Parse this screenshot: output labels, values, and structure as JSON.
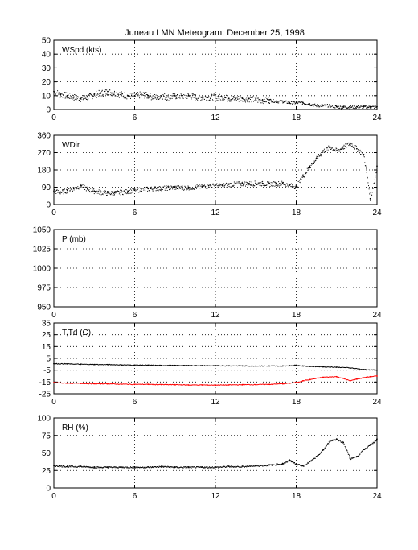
{
  "figure": {
    "title": "Juneau LMN Meteogram:   December 25, 1998"
  },
  "chart_data": [
    {
      "type": "scatter",
      "label": "WSpd (kts)",
      "ylim": [
        0,
        50
      ],
      "yticks": [
        0,
        10,
        20,
        30,
        40,
        50
      ],
      "xlim": [
        0,
        24
      ],
      "xticks": [
        0,
        6,
        12,
        18,
        24
      ],
      "grid": true,
      "colors": [
        "#000000"
      ],
      "series": [
        {
          "values": [
            [
              0,
              13
            ],
            [
              0.5,
              11
            ],
            [
              1,
              10
            ],
            [
              1.5,
              9
            ],
            [
              2,
              8
            ],
            [
              2.5,
              9
            ],
            [
              3,
              11
            ],
            [
              3.5,
              12
            ],
            [
              4,
              13
            ],
            [
              4.5,
              12
            ],
            [
              5,
              11
            ],
            [
              5.5,
              10
            ],
            [
              6,
              10
            ],
            [
              6.5,
              11
            ],
            [
              7,
              10
            ],
            [
              7.5,
              9
            ],
            [
              8,
              10
            ],
            [
              8.5,
              9
            ],
            [
              9,
              10
            ],
            [
              9.5,
              10
            ],
            [
              10,
              10
            ],
            [
              10.5,
              9
            ],
            [
              11,
              9
            ],
            [
              11.5,
              9
            ],
            [
              12,
              9
            ],
            [
              12.5,
              9
            ],
            [
              13,
              8
            ],
            [
              13.5,
              8
            ],
            [
              14,
              8
            ],
            [
              14.5,
              8
            ],
            [
              15,
              7
            ],
            [
              15.5,
              7
            ],
            [
              16,
              7
            ],
            [
              16.5,
              6
            ],
            [
              17,
              6
            ],
            [
              17.5,
              5
            ],
            [
              18,
              5
            ],
            [
              18.5,
              5
            ],
            [
              19,
              4
            ],
            [
              19.5,
              3
            ],
            [
              20,
              3
            ],
            [
              20.5,
              3
            ],
            [
              21,
              2
            ],
            [
              21.5,
              2
            ],
            [
              22,
              2
            ],
            [
              22.5,
              2
            ],
            [
              23,
              2
            ],
            [
              23.5,
              2
            ],
            [
              24,
              2
            ]
          ]
        }
      ]
    },
    {
      "type": "scatter",
      "label": "WDir",
      "ylim": [
        0,
        360
      ],
      "yticks": [
        0,
        90,
        180,
        270,
        360
      ],
      "xlim": [
        0,
        24
      ],
      "xticks": [
        0,
        6,
        12,
        18,
        24
      ],
      "grid": true,
      "colors": [
        "#000000"
      ],
      "series": [
        {
          "values": [
            [
              0,
              70
            ],
            [
              0.5,
              65
            ],
            [
              1,
              75
            ],
            [
              1.5,
              85
            ],
            [
              2,
              100
            ],
            [
              2.5,
              80
            ],
            [
              3,
              70
            ],
            [
              3.5,
              65
            ],
            [
              4,
              60
            ],
            [
              4.5,
              62
            ],
            [
              5,
              65
            ],
            [
              5.5,
              70
            ],
            [
              6,
              75
            ],
            [
              6.5,
              80
            ],
            [
              7,
              82
            ],
            [
              7.5,
              85
            ],
            [
              8,
              85
            ],
            [
              8.5,
              88
            ],
            [
              9,
              90
            ],
            [
              9.5,
              88
            ],
            [
              10,
              90
            ],
            [
              10.5,
              92
            ],
            [
              11,
              95
            ],
            [
              11.5,
              98
            ],
            [
              12,
              100
            ],
            [
              12.5,
              100
            ],
            [
              13,
              105
            ],
            [
              13.5,
              108
            ],
            [
              14,
              110
            ],
            [
              14.5,
              110
            ],
            [
              15,
              112
            ],
            [
              15.5,
              110
            ],
            [
              16,
              108
            ],
            [
              16.5,
              110
            ],
            [
              17,
              112
            ],
            [
              17.5,
              100
            ],
            [
              18,
              95
            ],
            [
              18.5,
              150
            ],
            [
              19,
              200
            ],
            [
              19.5,
              240
            ],
            [
              20,
              280
            ],
            [
              20.5,
              300
            ],
            [
              21,
              280
            ],
            [
              21.5,
              300
            ],
            [
              22,
              320
            ],
            [
              22.5,
              290
            ],
            [
              23,
              260
            ],
            [
              23.5,
              30
            ],
            [
              24,
              200
            ]
          ]
        }
      ]
    },
    {
      "type": "scatter",
      "label": "P (mb)",
      "ylim": [
        950,
        1050
      ],
      "yticks": [
        950,
        975,
        1000,
        1025,
        1050
      ],
      "xlim": [
        0,
        24
      ],
      "xticks": [
        0,
        6,
        12,
        18,
        24
      ],
      "grid": true,
      "colors": [
        "#000000"
      ],
      "series": [
        {
          "values": []
        }
      ]
    },
    {
      "type": "line",
      "label": "T,Td (C)",
      "ylim": [
        -25,
        35
      ],
      "yticks": [
        -25,
        -15,
        -5,
        5,
        15,
        25,
        35
      ],
      "xlim": [
        0,
        24
      ],
      "xticks": [
        0,
        6,
        12,
        18,
        24
      ],
      "grid": true,
      "colors": [
        "#000000",
        "#ff0000"
      ],
      "series": [
        {
          "values": [
            [
              0,
              0.5
            ],
            [
              1,
              0.3
            ],
            [
              2,
              0
            ],
            [
              3,
              -0.2
            ],
            [
              4,
              -0.3
            ],
            [
              5,
              -0.5
            ],
            [
              6,
              -0.7
            ],
            [
              7,
              -0.8
            ],
            [
              8,
              -1
            ],
            [
              9,
              -1
            ],
            [
              10,
              -1.1
            ],
            [
              11,
              -1.2
            ],
            [
              12,
              -1.3
            ],
            [
              13,
              -1.3
            ],
            [
              14,
              -1.4
            ],
            [
              15,
              -1.5
            ],
            [
              16,
              -1.5
            ],
            [
              17,
              -1.5
            ],
            [
              17.5,
              -1.2
            ],
            [
              18,
              -0.8
            ],
            [
              18.5,
              -1.5
            ],
            [
              19,
              -1.8
            ],
            [
              20,
              -2.2
            ],
            [
              21,
              -2.5
            ],
            [
              22,
              -3
            ],
            [
              23,
              -4.5
            ],
            [
              24,
              -5
            ]
          ]
        },
        {
          "values": [
            [
              0,
              -15.5
            ],
            [
              1,
              -16
            ],
            [
              2,
              -16.2
            ],
            [
              3,
              -16.5
            ],
            [
              4,
              -16.5
            ],
            [
              5,
              -16.8
            ],
            [
              6,
              -17
            ],
            [
              7,
              -17
            ],
            [
              8,
              -17.2
            ],
            [
              9,
              -17.3
            ],
            [
              10,
              -17.5
            ],
            [
              11,
              -17.5
            ],
            [
              12,
              -17.6
            ],
            [
              13,
              -17.5
            ],
            [
              14,
              -17.3
            ],
            [
              15,
              -17.2
            ],
            [
              16,
              -17
            ],
            [
              17,
              -16.5
            ],
            [
              17.5,
              -16
            ],
            [
              18,
              -15.5
            ],
            [
              18.5,
              -14
            ],
            [
              19,
              -13
            ],
            [
              20,
              -11
            ],
            [
              21,
              -10.5
            ],
            [
              21.5,
              -12
            ],
            [
              22,
              -14
            ],
            [
              22.5,
              -12.5
            ],
            [
              23,
              -11.5
            ],
            [
              23.5,
              -10.5
            ],
            [
              24,
              -10
            ]
          ]
        }
      ]
    },
    {
      "type": "scatter",
      "label": "RH (%)",
      "ylim": [
        0,
        100
      ],
      "yticks": [
        0,
        25,
        50,
        75,
        100
      ],
      "xlim": [
        0,
        24
      ],
      "xticks": [
        0,
        6,
        12,
        18,
        24
      ],
      "grid": true,
      "colors": [
        "#000000"
      ],
      "series": [
        {
          "values": [
            [
              0,
              32
            ],
            [
              1,
              31
            ],
            [
              2,
              31
            ],
            [
              3,
              30
            ],
            [
              4,
              30
            ],
            [
              5,
              30
            ],
            [
              6,
              30
            ],
            [
              7,
              30
            ],
            [
              8,
              31
            ],
            [
              9,
              30
            ],
            [
              10,
              30
            ],
            [
              11,
              30
            ],
            [
              12,
              30
            ],
            [
              13,
              31
            ],
            [
              14,
              31
            ],
            [
              15,
              32
            ],
            [
              16,
              33
            ],
            [
              17,
              35
            ],
            [
              17.5,
              40
            ],
            [
              18,
              34
            ],
            [
              18.5,
              32
            ],
            [
              19,
              38
            ],
            [
              19.5,
              45
            ],
            [
              20,
              55
            ],
            [
              20.5,
              68
            ],
            [
              21,
              70
            ],
            [
              21.5,
              65
            ],
            [
              22,
              42
            ],
            [
              22.5,
              45
            ],
            [
              23,
              55
            ],
            [
              23.5,
              62
            ],
            [
              24,
              70
            ]
          ]
        }
      ]
    }
  ]
}
